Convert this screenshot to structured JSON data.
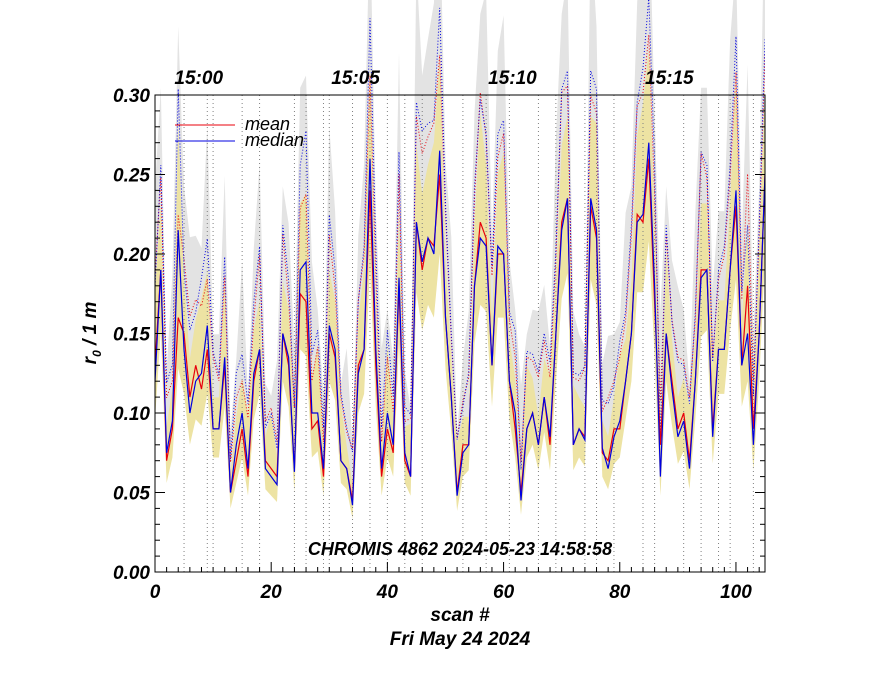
{
  "chart_data": {
    "type": "line",
    "title": "",
    "annotation": "CHROMIS 4862 2024-05-23 14:58:58",
    "xlabel": "scan #",
    "xlabel2": "Fri May 24 2024",
    "ylabel": "r",
    "ylabel_sub": "0",
    "ylabel_suffix": " / 1 m",
    "xlim": [
      0,
      105
    ],
    "ylim": [
      0,
      0.3
    ],
    "x_ticks": [
      0,
      20,
      40,
      60,
      80,
      100
    ],
    "x_tick_labels": [
      "0",
      "20",
      "40",
      "60",
      "80",
      "100"
    ],
    "y_ticks": [
      0,
      0.05,
      0.1,
      0.15,
      0.2,
      0.25,
      0.3
    ],
    "y_tick_labels": [
      "0.00",
      "0.05",
      "0.10",
      "0.15",
      "0.20",
      "0.25",
      "0.30"
    ],
    "top_time_ticks": [
      {
        "scan": 3,
        "label": "15:00"
      },
      {
        "scan": 30,
        "label": "15:05"
      },
      {
        "scan": 57,
        "label": "15:10"
      },
      {
        "scan": 84,
        "label": "15:15"
      }
    ],
    "legend": [
      {
        "name": "mean",
        "color": "#e8000b"
      },
      {
        "name": "median",
        "color": "#0000e0"
      }
    ],
    "colors": {
      "mean": "#e8000b",
      "median": "#0000e0",
      "band_inner": "#ede3a3",
      "band_outer": "#e3e3e3",
      "grid": "#808080"
    },
    "vertical_dotted_scans": [
      5,
      9,
      10,
      15,
      18,
      24,
      26,
      29,
      30,
      34,
      37,
      40,
      43,
      46,
      53,
      57,
      61,
      66,
      69,
      74,
      76,
      79,
      84,
      86,
      91,
      94,
      97,
      99,
      103
    ],
    "series": [
      {
        "name": "mean",
        "x": [
          0,
          1,
          2,
          3,
          4,
          5,
          6,
          7,
          8,
          9,
          10,
          11,
          12,
          13,
          14,
          15,
          16,
          17,
          18,
          19,
          20,
          21,
          22,
          23,
          24,
          25,
          26,
          27,
          28,
          29,
          30,
          31,
          32,
          33,
          34,
          35,
          36,
          37,
          38,
          39,
          40,
          41,
          42,
          43,
          44,
          45,
          46,
          47,
          48,
          49,
          50,
          51,
          52,
          53,
          54,
          55,
          56,
          57,
          58,
          59,
          60,
          61,
          62,
          63,
          64,
          65,
          66,
          67,
          68,
          69,
          70,
          71,
          72,
          73,
          74,
          75,
          76,
          77,
          78,
          79,
          80,
          81,
          82,
          83,
          84,
          85,
          86,
          87,
          88,
          89,
          90,
          91,
          92,
          93,
          94,
          95,
          96,
          97,
          98,
          99,
          100,
          101,
          102,
          103,
          104,
          105
        ],
        "values": [
          0.13,
          0.19,
          0.07,
          0.09,
          0.16,
          0.15,
          0.11,
          0.13,
          0.115,
          0.14,
          0.09,
          0.09,
          0.13,
          0.05,
          0.07,
          0.09,
          0.06,
          0.12,
          0.14,
          0.07,
          0.065,
          0.06,
          0.15,
          0.13,
          0.065,
          0.175,
          0.17,
          0.09,
          0.095,
          0.06,
          0.15,
          0.135,
          0.07,
          0.065,
          0.045,
          0.13,
          0.14,
          0.24,
          0.13,
          0.06,
          0.09,
          0.075,
          0.18,
          0.07,
          0.06,
          0.22,
          0.19,
          0.21,
          0.205,
          0.25,
          0.16,
          0.11,
          0.05,
          0.08,
          0.08,
          0.18,
          0.22,
          0.21,
          0.13,
          0.2,
          0.2,
          0.12,
          0.09,
          0.05,
          0.09,
          0.1,
          0.08,
          0.11,
          0.08,
          0.15,
          0.22,
          0.235,
          0.08,
          0.09,
          0.085,
          0.23,
          0.21,
          0.075,
          0.07,
          0.09,
          0.09,
          0.12,
          0.15,
          0.225,
          0.22,
          0.26,
          0.17,
          0.08,
          0.15,
          0.12,
          0.09,
          0.1,
          0.07,
          0.12,
          0.19,
          0.19,
          0.09,
          0.14,
          0.14,
          0.19,
          0.23,
          0.13,
          0.18,
          0.09,
          0.15,
          0.25
        ]
      },
      {
        "name": "median",
        "x": [
          0,
          1,
          2,
          3,
          4,
          5,
          6,
          7,
          8,
          9,
          10,
          11,
          12,
          13,
          14,
          15,
          16,
          17,
          18,
          19,
          20,
          21,
          22,
          23,
          24,
          25,
          26,
          27,
          28,
          29,
          30,
          31,
          32,
          33,
          34,
          35,
          36,
          37,
          38,
          39,
          40,
          41,
          42,
          43,
          44,
          45,
          46,
          47,
          48,
          49,
          50,
          51,
          52,
          53,
          54,
          55,
          56,
          57,
          58,
          59,
          60,
          61,
          62,
          63,
          64,
          65,
          66,
          67,
          68,
          69,
          70,
          71,
          72,
          73,
          74,
          75,
          76,
          77,
          78,
          79,
          80,
          81,
          82,
          83,
          84,
          85,
          86,
          87,
          88,
          89,
          90,
          91,
          92,
          93,
          94,
          95,
          96,
          97,
          98,
          99,
          100,
          101,
          102,
          103,
          104,
          105
        ],
        "values": [
          0.12,
          0.19,
          0.075,
          0.095,
          0.215,
          0.14,
          0.1,
          0.12,
          0.125,
          0.155,
          0.09,
          0.09,
          0.135,
          0.05,
          0.08,
          0.1,
          0.065,
          0.125,
          0.14,
          0.065,
          0.06,
          0.055,
          0.15,
          0.135,
          0.063,
          0.19,
          0.195,
          0.1,
          0.1,
          0.065,
          0.155,
          0.14,
          0.07,
          0.065,
          0.042,
          0.125,
          0.14,
          0.26,
          0.14,
          0.065,
          0.1,
          0.08,
          0.185,
          0.075,
          0.06,
          0.22,
          0.195,
          0.21,
          0.2,
          0.265,
          0.16,
          0.11,
          0.048,
          0.075,
          0.08,
          0.18,
          0.21,
          0.205,
          0.13,
          0.205,
          0.2,
          0.12,
          0.1,
          0.045,
          0.09,
          0.1,
          0.08,
          0.11,
          0.085,
          0.15,
          0.215,
          0.235,
          0.08,
          0.09,
          0.083,
          0.235,
          0.215,
          0.078,
          0.065,
          0.085,
          0.095,
          0.12,
          0.15,
          0.22,
          0.225,
          0.27,
          0.18,
          0.06,
          0.15,
          0.115,
          0.085,
          0.095,
          0.065,
          0.12,
          0.185,
          0.19,
          0.085,
          0.14,
          0.14,
          0.19,
          0.24,
          0.13,
          0.15,
          0.08,
          0.15,
          0.25
        ]
      }
    ]
  }
}
